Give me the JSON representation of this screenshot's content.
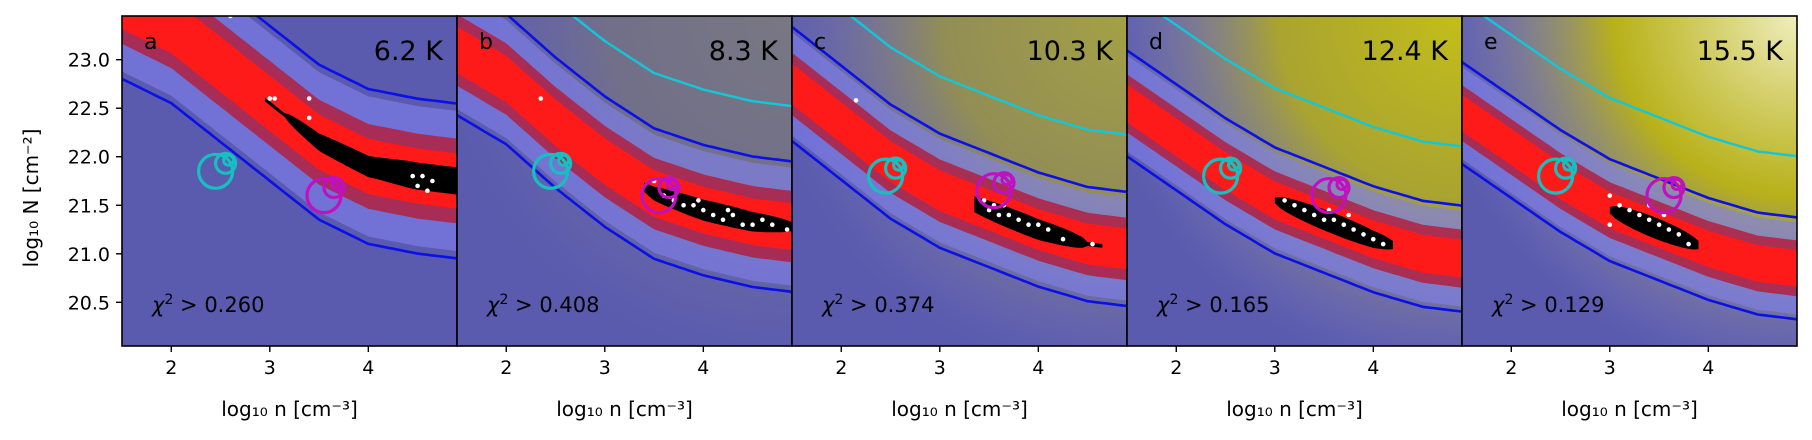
{
  "chart_data": {
    "type": "heatmap",
    "xlabel": "log₁₀ n [cm⁻³]",
    "ylabel": "log₁₀ N [cm⁻²]",
    "xlim": [
      1.5,
      4.9
    ],
    "ylim": [
      20.05,
      23.45
    ],
    "xticks": [
      2,
      3,
      4
    ],
    "yticks": [
      20.5,
      21.0,
      21.5,
      22.0,
      22.5,
      23.0
    ],
    "panels": [
      {
        "label": "a",
        "temperature": "6.2 K",
        "chi2": "0.260",
        "valley": [
          [
            1.5,
            23.6
          ],
          [
            2.0,
            23.35
          ],
          [
            2.5,
            22.95
          ],
          [
            3.0,
            22.55
          ],
          [
            3.5,
            22.15
          ],
          [
            4.0,
            21.9
          ],
          [
            4.5,
            21.8
          ],
          [
            4.9,
            21.75
          ]
        ],
        "width": 0.38,
        "yellow": 0.0,
        "points": [
          [
            2.6,
            23.45
          ],
          [
            3.0,
            22.6
          ],
          [
            3.05,
            22.6
          ],
          [
            3.4,
            22.6
          ],
          [
            3.4,
            22.4
          ],
          [
            4.45,
            21.8
          ],
          [
            4.5,
            21.7
          ],
          [
            4.55,
            21.8
          ],
          [
            4.6,
            21.65
          ],
          [
            4.65,
            21.75
          ]
        ],
        "cyan_circle": [
          2.45,
          21.85
        ],
        "magenta_circle": [
          3.55,
          21.6
        ]
      },
      {
        "label": "b",
        "temperature": "8.3 K",
        "chi2": "0.408",
        "valley": [
          [
            1.5,
            23.1
          ],
          [
            2.0,
            22.8
          ],
          [
            2.5,
            22.35
          ],
          [
            3.0,
            21.95
          ],
          [
            3.5,
            21.62
          ],
          [
            4.0,
            21.45
          ],
          [
            4.5,
            21.33
          ],
          [
            4.9,
            21.28
          ]
        ],
        "width": 0.32,
        "yellow": 0.25,
        "points": [
          [
            2.35,
            22.6
          ],
          [
            3.5,
            21.75
          ],
          [
            3.6,
            21.6
          ],
          [
            3.7,
            21.55
          ],
          [
            3.8,
            21.5
          ],
          [
            3.9,
            21.5
          ],
          [
            4.0,
            21.45
          ],
          [
            4.1,
            21.4
          ],
          [
            4.2,
            21.35
          ],
          [
            4.3,
            21.4
          ],
          [
            4.4,
            21.3
          ],
          [
            4.5,
            21.3
          ],
          [
            4.6,
            21.35
          ],
          [
            4.7,
            21.3
          ],
          [
            4.85,
            21.25
          ],
          [
            3.95,
            21.55
          ],
          [
            4.25,
            21.45
          ]
        ],
        "cyan_circle": [
          2.45,
          21.85
        ],
        "magenta_circle": [
          3.55,
          21.6
        ]
      },
      {
        "label": "c",
        "temperature": "10.3 K",
        "chi2": "0.374",
        "valley": [
          [
            1.5,
            22.75
          ],
          [
            2.0,
            22.35
          ],
          [
            2.5,
            21.95
          ],
          [
            3.0,
            21.65
          ],
          [
            3.5,
            21.45
          ],
          [
            4.0,
            21.25
          ],
          [
            4.5,
            21.1
          ],
          [
            4.9,
            21.05
          ]
        ],
        "width": 0.28,
        "yellow": 0.6,
        "points": [
          [
            2.15,
            22.58
          ],
          [
            3.45,
            21.55
          ],
          [
            3.5,
            21.45
          ],
          [
            3.6,
            21.4
          ],
          [
            3.7,
            21.4
          ],
          [
            3.8,
            21.35
          ],
          [
            3.9,
            21.3
          ],
          [
            4.0,
            21.3
          ],
          [
            4.1,
            21.25
          ],
          [
            3.55,
            21.5
          ],
          [
            4.25,
            21.15
          ],
          [
            4.55,
            21.1
          ],
          [
            3.65,
            21.5
          ]
        ],
        "cyan_circle": [
          2.45,
          21.8
        ],
        "magenta_circle": [
          3.55,
          21.65
        ]
      },
      {
        "label": "d",
        "temperature": "12.4 K",
        "chi2": "0.165",
        "valley": [
          [
            1.5,
            22.55
          ],
          [
            2.0,
            22.2
          ],
          [
            2.5,
            21.85
          ],
          [
            3.0,
            21.55
          ],
          [
            3.5,
            21.35
          ],
          [
            4.0,
            21.15
          ],
          [
            4.5,
            21.0
          ],
          [
            4.9,
            20.95
          ]
        ],
        "width": 0.26,
        "yellow": 0.85,
        "points": [
          [
            3.1,
            21.55
          ],
          [
            3.2,
            21.5
          ],
          [
            3.3,
            21.45
          ],
          [
            3.4,
            21.4
          ],
          [
            3.5,
            21.35
          ],
          [
            3.6,
            21.35
          ],
          [
            3.7,
            21.3
          ],
          [
            3.8,
            21.25
          ],
          [
            3.9,
            21.2
          ],
          [
            4.0,
            21.15
          ],
          [
            4.1,
            21.1
          ],
          [
            3.55,
            21.45
          ],
          [
            3.75,
            21.4
          ]
        ],
        "cyan_circle": [
          2.45,
          21.8
        ],
        "magenta_circle": [
          3.55,
          21.6
        ]
      },
      {
        "label": "e",
        "temperature": "15.5 K",
        "chi2": "0.129",
        "valley": [
          [
            1.5,
            22.45
          ],
          [
            2.0,
            22.1
          ],
          [
            2.5,
            21.75
          ],
          [
            3.0,
            21.45
          ],
          [
            3.5,
            21.25
          ],
          [
            4.0,
            21.05
          ],
          [
            4.5,
            20.9
          ],
          [
            4.9,
            20.85
          ]
        ],
        "width": 0.25,
        "yellow": 1.0,
        "points": [
          [
            3.0,
            21.6
          ],
          [
            3.0,
            21.3
          ],
          [
            3.1,
            21.5
          ],
          [
            3.2,
            21.45
          ],
          [
            3.3,
            21.4
          ],
          [
            3.4,
            21.35
          ],
          [
            3.5,
            21.3
          ],
          [
            3.6,
            21.25
          ],
          [
            3.7,
            21.2
          ],
          [
            3.8,
            21.1
          ],
          [
            3.4,
            21.5
          ],
          [
            3.55,
            21.4
          ]
        ],
        "cyan_circle": [
          2.45,
          21.8
        ],
        "magenta_circle": [
          3.55,
          21.6
        ]
      }
    ]
  }
}
